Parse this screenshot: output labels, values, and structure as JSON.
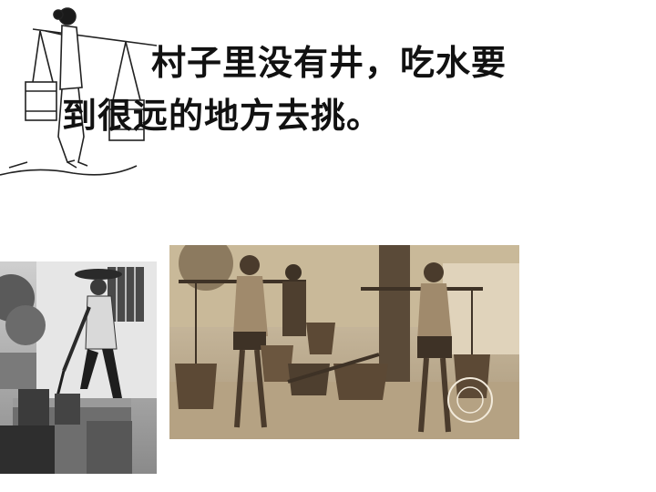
{
  "text": {
    "line1": "村子里没有井，吃水要",
    "line2": "到很远的地方去挑。"
  },
  "colors": {
    "text": "#111111",
    "sepia_light": "#d8cab0",
    "sepia_dark": "#3e3226",
    "bw_dark": "#1e1e1e"
  },
  "images": {
    "left": "bw-photo-man-drawing-well-water-icon",
    "center": "sepia-photo-water-carriers-icon",
    "right": "line-drawing-woman-shoulder-pole-icon"
  }
}
